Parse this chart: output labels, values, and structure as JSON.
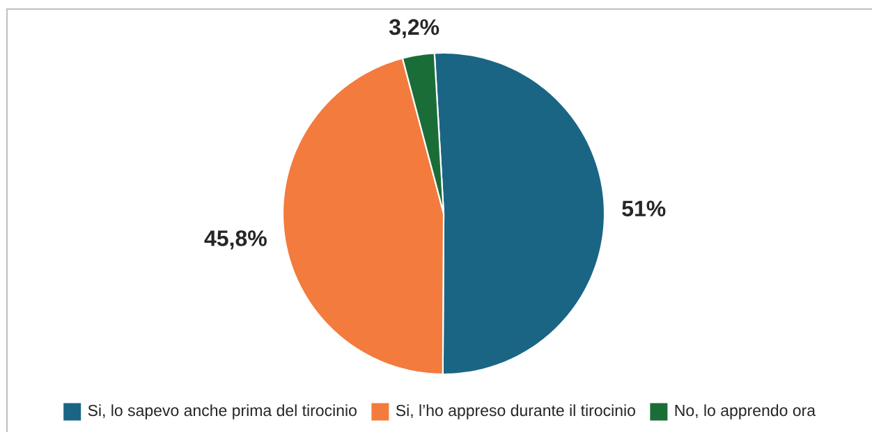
{
  "chart_data": {
    "type": "pie",
    "categories": [
      "Si, lo sapevo anche prima del tirocinio",
      "Si, l’ho appreso durante il tirocinio",
      "No, lo apprendo ora"
    ],
    "values": [
      51,
      45.8,
      3.2
    ],
    "colors": [
      "#1a6584",
      "#f37b3d",
      "#1b6d38"
    ],
    "value_labels": [
      "51%",
      "45,8%",
      "3,2%"
    ],
    "legend": "bottom"
  }
}
